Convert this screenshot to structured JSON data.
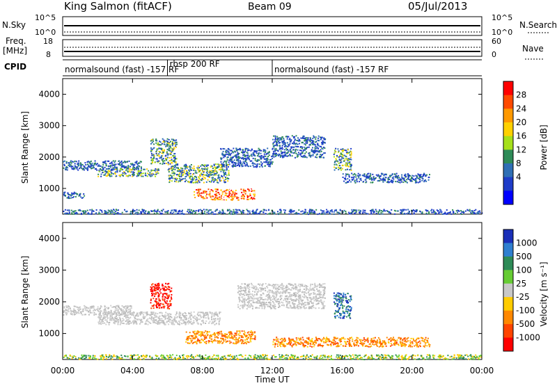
{
  "header": {
    "station": "King Salmon (fitACF)",
    "beam": "Beam 09",
    "date": "05/Jul/2013"
  },
  "status_panels": {
    "nsky_label": "N.Sky",
    "freq_label_1": "Freq.",
    "freq_label_2": "[MHz]",
    "cpid_label": "CPID",
    "nsearch_label": "N.Search",
    "nave_label": "Nave",
    "left_ticks_top": [
      "10^5",
      "10^0"
    ],
    "right_ticks_top": [
      "10^5",
      "10^0"
    ],
    "left_ticks_freq": [
      "18",
      "8"
    ],
    "right_ticks_nave": [
      "60",
      "0"
    ]
  },
  "cpid_segments": [
    {
      "label": "normalsound (fast) -157 RF",
      "start_hour": 0
    },
    {
      "label": "rbsp 200 RF",
      "start_hour": 6
    },
    {
      "label": "normalsound (fast) -157 RF",
      "start_hour": 12
    }
  ],
  "axes": {
    "x_label": "Time UT",
    "x_ticks": [
      "00:00",
      "04:00",
      "08:00",
      "12:00",
      "16:00",
      "20:00",
      "00:00"
    ],
    "y_label": "Slant Range [km]",
    "y_ticks": [
      "4000",
      "3000",
      "2000",
      "1000"
    ]
  },
  "colorbars": {
    "power": {
      "label": "Power [dB]",
      "ticks": [
        "28",
        "24",
        "20",
        "16",
        "12",
        "8",
        "4"
      ],
      "colors": [
        "#ff0000",
        "#ff4a00",
        "#ff9900",
        "#ffd100",
        "#a6e01a",
        "#2e8b57",
        "#2f6fb5",
        "#1e3cc8",
        "#0000ff"
      ]
    },
    "velocity": {
      "label": "Velocity [m s⁻¹]",
      "ticks": [
        "1000",
        "500",
        "100",
        "25",
        "-25",
        "-100",
        "-500",
        "-1000"
      ],
      "colors": [
        "#1a2fb8",
        "#2f7fd0",
        "#2e8b57",
        "#66cc33",
        "#c8c8c8",
        "#ffcc00",
        "#ff8800",
        "#ff4400",
        "#ff0000"
      ]
    }
  },
  "chart_data": [
    {
      "type": "heatmap",
      "name": "power",
      "xlim": [
        0,
        24
      ],
      "ylim": [
        180,
        4500
      ],
      "bands": [
        {
          "t0": 0.0,
          "t1": 4.5,
          "r0": 1600,
          "r1": 1900,
          "level": "low"
        },
        {
          "t0": 0.0,
          "t1": 1.2,
          "r0": 700,
          "r1": 900,
          "level": "low"
        },
        {
          "t0": 2.0,
          "t1": 5.5,
          "r0": 1400,
          "r1": 1650,
          "level": "mid"
        },
        {
          "t0": 5.0,
          "t1": 6.5,
          "r0": 1800,
          "r1": 2600,
          "level": "mid"
        },
        {
          "t0": 6.0,
          "t1": 9.5,
          "r0": 1200,
          "r1": 1800,
          "level": "mid"
        },
        {
          "t0": 7.5,
          "t1": 11.0,
          "r0": 650,
          "r1": 1000,
          "level": "high"
        },
        {
          "t0": 9.0,
          "t1": 12.0,
          "r0": 1700,
          "r1": 2300,
          "level": "low"
        },
        {
          "t0": 12.0,
          "t1": 15.0,
          "r0": 2000,
          "r1": 2700,
          "level": "low"
        },
        {
          "t0": 15.5,
          "t1": 16.5,
          "r0": 1600,
          "r1": 2300,
          "level": "mid"
        },
        {
          "t0": 16.0,
          "t1": 21.0,
          "r0": 1200,
          "r1": 1500,
          "level": "low"
        },
        {
          "t0": 0.0,
          "t1": 24.0,
          "r0": 200,
          "r1": 350,
          "level": "low"
        }
      ]
    },
    {
      "type": "heatmap",
      "name": "velocity",
      "xlim": [
        0,
        24
      ],
      "ylim": [
        180,
        4500
      ],
      "bands": [
        {
          "t0": 0.0,
          "t1": 4.0,
          "r0": 1600,
          "r1": 1900,
          "level": "grey"
        },
        {
          "t0": 2.0,
          "t1": 9.0,
          "r0": 1300,
          "r1": 1700,
          "level": "grey"
        },
        {
          "t0": 5.0,
          "t1": 6.2,
          "r0": 1800,
          "r1": 2600,
          "level": "red"
        },
        {
          "t0": 7.0,
          "t1": 11.0,
          "r0": 700,
          "r1": 1100,
          "level": "orange"
        },
        {
          "t0": 10.0,
          "t1": 15.0,
          "r0": 1800,
          "r1": 2600,
          "level": "grey"
        },
        {
          "t0": 15.5,
          "t1": 16.5,
          "r0": 1500,
          "r1": 2300,
          "level": "blue"
        },
        {
          "t0": 12.0,
          "t1": 21.0,
          "r0": 600,
          "r1": 900,
          "level": "orange"
        },
        {
          "t0": 0.0,
          "t1": 24.0,
          "r0": 200,
          "r1": 350,
          "level": "green"
        }
      ]
    }
  ]
}
